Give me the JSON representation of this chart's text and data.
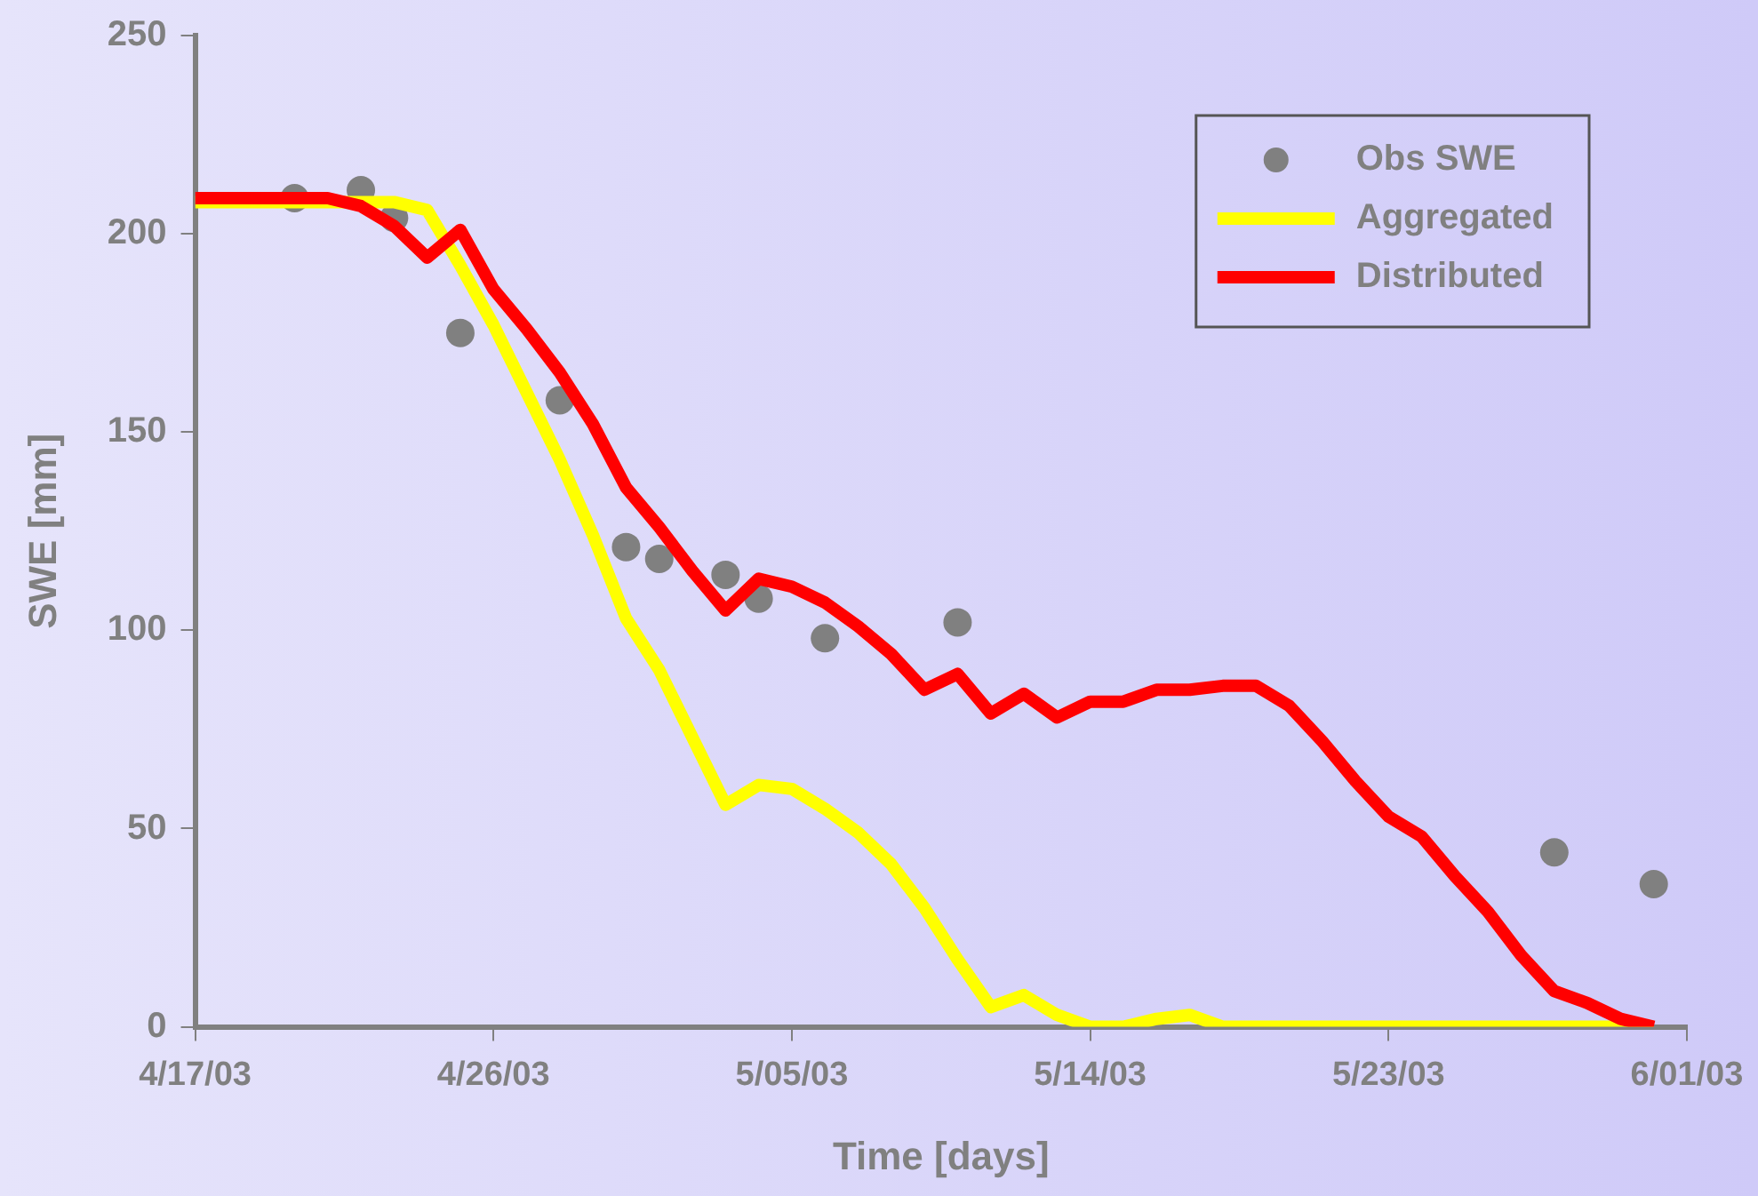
{
  "chart_data": {
    "type": "line",
    "xlabel": "Time [days]",
    "ylabel": "SWE [mm]",
    "xlim": [
      "--04-17",
      "--06-01"
    ],
    "xticks": [
      {
        "value": "--04-17",
        "label": "4/17/03"
      },
      {
        "value": "--04-26",
        "label": "4/26/03"
      },
      {
        "value": "--05-05",
        "label": "5/05/03"
      },
      {
        "value": "--05-14",
        "label": "5/14/03"
      },
      {
        "value": "--05-23",
        "label": "5/23/03"
      },
      {
        "value": "--06-01",
        "label": "6/01/03"
      }
    ],
    "ylim": [
      0,
      250
    ],
    "yticks": [
      0,
      50,
      100,
      150,
      200,
      250
    ],
    "grid": false,
    "legend": "top right",
    "series": [
      {
        "name": "Obs SWE",
        "type": "scatter",
        "marker": "circle",
        "color": "#808080",
        "x": [
          "--04-20",
          "--04-22",
          "--04-23",
          "--04-25",
          "--04-28",
          "--04-30",
          "--05-01",
          "--05-03",
          "--05-04",
          "--05-06",
          "--05-10",
          "--05-28",
          "--05-31"
        ],
        "values": [
          209,
          211,
          204,
          175,
          158,
          121,
          118,
          114,
          108,
          98,
          102,
          44,
          36
        ]
      },
      {
        "name": "Aggregated",
        "type": "line",
        "marker": "none",
        "color": "#ffff00",
        "x": [
          "--04-17",
          "--04-18",
          "--04-19",
          "--04-20",
          "--04-21",
          "--04-22",
          "--04-23",
          "--04-24",
          "--04-25",
          "--04-26",
          "--04-27",
          "--04-28",
          "--04-29",
          "--04-30",
          "--05-01",
          "--05-02",
          "--05-03",
          "--05-04",
          "--05-05",
          "--05-06",
          "--05-07",
          "--05-08",
          "--05-09",
          "--05-10",
          "--05-11",
          "--05-12",
          "--05-13",
          "--05-14",
          "--05-15",
          "--05-16",
          "--05-17",
          "--05-18",
          "--05-19",
          "--05-20",
          "--05-21",
          "--05-22",
          "--05-23",
          "--05-24",
          "--05-25",
          "--05-26",
          "--05-27",
          "--05-28",
          "--05-29",
          "--05-30",
          "--05-31"
        ],
        "values": [
          208,
          208,
          208,
          208,
          208,
          208,
          208,
          206,
          192,
          177,
          160,
          143,
          124,
          103,
          90,
          73,
          56,
          61,
          60,
          55,
          49,
          41,
          30,
          17,
          5,
          8,
          3,
          0,
          0,
          2,
          3,
          0,
          0,
          0,
          0,
          0,
          0,
          0,
          0,
          0,
          0,
          0,
          0,
          0,
          0
        ]
      },
      {
        "name": "Distributed",
        "type": "line",
        "marker": "none",
        "color": "#ff0000",
        "x": [
          "--04-17",
          "--04-18",
          "--04-19",
          "--04-20",
          "--04-21",
          "--04-22",
          "--04-23",
          "--04-24",
          "--04-25",
          "--04-26",
          "--04-27",
          "--04-28",
          "--04-29",
          "--04-30",
          "--05-01",
          "--05-02",
          "--05-03",
          "--05-04",
          "--05-05",
          "--05-06",
          "--05-07",
          "--05-08",
          "--05-09",
          "--05-10",
          "--05-11",
          "--05-12",
          "--05-13",
          "--05-14",
          "--05-15",
          "--05-16",
          "--05-17",
          "--05-18",
          "--05-19",
          "--05-20",
          "--05-21",
          "--05-22",
          "--05-23",
          "--05-24",
          "--05-25",
          "--05-26",
          "--05-27",
          "--05-28",
          "--05-29",
          "--05-30",
          "--05-31"
        ],
        "values": [
          209,
          209,
          209,
          209,
          209,
          207,
          202,
          194,
          201,
          186,
          176,
          165,
          152,
          136,
          126,
          115,
          105,
          113,
          111,
          107,
          101,
          94,
          85,
          89,
          79,
          84,
          78,
          82,
          82,
          85,
          85,
          86,
          86,
          81,
          72,
          62,
          53,
          48,
          38,
          29,
          18,
          9,
          6,
          2,
          0
        ]
      }
    ]
  }
}
